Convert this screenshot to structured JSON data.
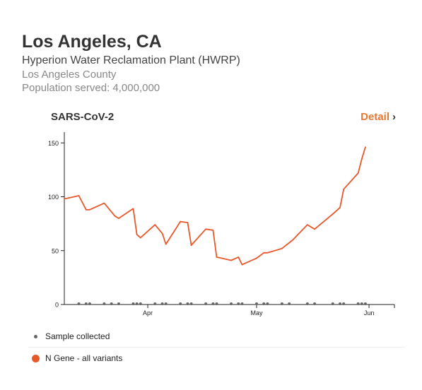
{
  "header": {
    "city": "Los Angeles, CA",
    "plant": "Hyperion Water Reclamation Plant (HWRP)",
    "county": "Los Angeles County",
    "population": "Population served: 4,000,000"
  },
  "card": {
    "title": "SARS-CoV-2",
    "detail_label": "Detail",
    "detail_chevron": "›"
  },
  "legend": {
    "sample_label": "Sample collected",
    "series_label": "N Gene - all variants"
  },
  "colors": {
    "line": "#e8582b",
    "accent": "#e87732",
    "sample_dot": "#666666"
  },
  "chart_data": {
    "type": "line",
    "title": "",
    "xlabel": "",
    "ylabel": "",
    "ylim": [
      0,
      160
    ],
    "yticks": [
      0,
      50,
      100,
      150
    ],
    "xrange": [
      "2023-03-09",
      "2023-06-08"
    ],
    "xticks": [
      {
        "date": "2023-04-01",
        "label": "Apr"
      },
      {
        "date": "2023-05-01",
        "label": "May"
      },
      {
        "date": "2023-06-01",
        "label": "Jun"
      }
    ],
    "series": [
      {
        "name": "N Gene - all variants",
        "points": [
          [
            "2023-03-09",
            98
          ],
          [
            "2023-03-13",
            101
          ],
          [
            "2023-03-15",
            88
          ],
          [
            "2023-03-16",
            88
          ],
          [
            "2023-03-20",
            94
          ],
          [
            "2023-03-22",
            86
          ],
          [
            "2023-03-23",
            82
          ],
          [
            "2023-03-24",
            80
          ],
          [
            "2023-03-28",
            89
          ],
          [
            "2023-03-29",
            65
          ],
          [
            "2023-03-30",
            62
          ],
          [
            "2023-04-03",
            74
          ],
          [
            "2023-04-05",
            66
          ],
          [
            "2023-04-06",
            56
          ],
          [
            "2023-04-10",
            77
          ],
          [
            "2023-04-12",
            76
          ],
          [
            "2023-04-13",
            55
          ],
          [
            "2023-04-17",
            70
          ],
          [
            "2023-04-19",
            69
          ],
          [
            "2023-04-20",
            44
          ],
          [
            "2023-04-24",
            41
          ],
          [
            "2023-04-26",
            44
          ],
          [
            "2023-04-27",
            37
          ],
          [
            "2023-05-01",
            43
          ],
          [
            "2023-05-03",
            48
          ],
          [
            "2023-05-04",
            48
          ],
          [
            "2023-05-08",
            52
          ],
          [
            "2023-05-11",
            60
          ],
          [
            "2023-05-15",
            74
          ],
          [
            "2023-05-17",
            70
          ],
          [
            "2023-05-22",
            84
          ],
          [
            "2023-05-24",
            90
          ],
          [
            "2023-05-25",
            107
          ],
          [
            "2023-05-29",
            122
          ],
          [
            "2023-05-30",
            135
          ],
          [
            "2023-05-31",
            146
          ]
        ]
      }
    ],
    "samples": [
      "2023-03-13",
      "2023-03-15",
      "2023-03-16",
      "2023-03-20",
      "2023-03-22",
      "2023-03-24",
      "2023-03-28",
      "2023-03-29",
      "2023-03-30",
      "2023-04-03",
      "2023-04-05",
      "2023-04-06",
      "2023-04-10",
      "2023-04-12",
      "2023-04-13",
      "2023-04-17",
      "2023-04-19",
      "2023-04-20",
      "2023-04-24",
      "2023-04-26",
      "2023-04-27",
      "2023-05-01",
      "2023-05-03",
      "2023-05-04",
      "2023-05-08",
      "2023-05-10",
      "2023-05-15",
      "2023-05-17",
      "2023-05-22",
      "2023-05-24",
      "2023-05-25",
      "2023-05-29",
      "2023-05-30",
      "2023-05-31"
    ],
    "grid": false,
    "legend_position": "bottom-left"
  }
}
